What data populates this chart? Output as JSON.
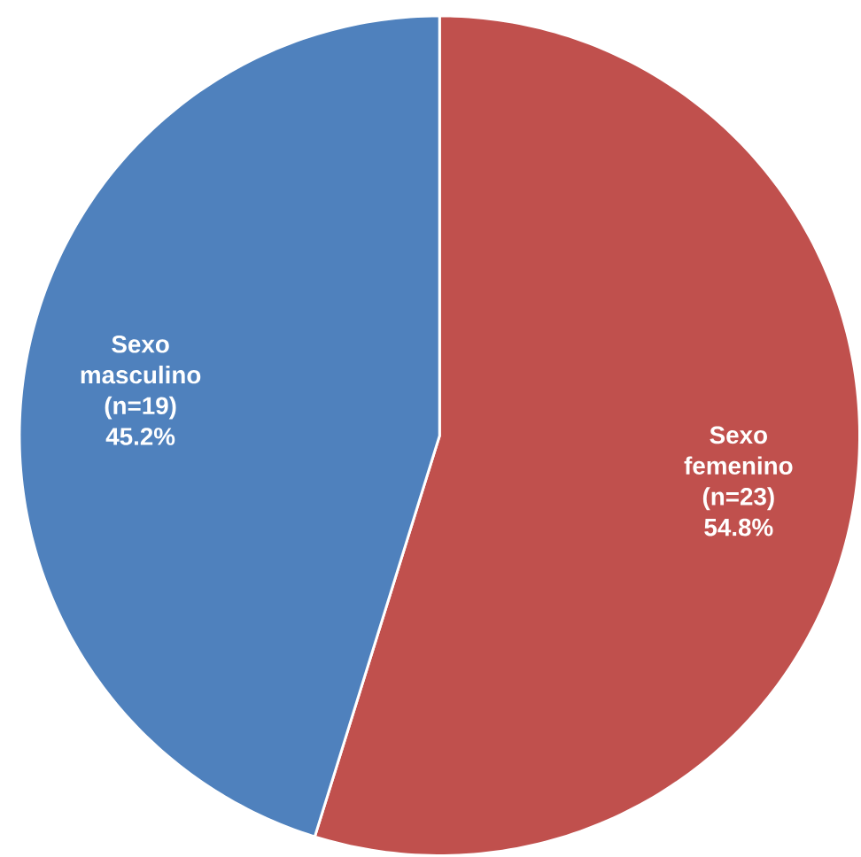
{
  "chart_data": {
    "type": "pie",
    "categories": [
      "Sexo femenino",
      "Sexo masculino"
    ],
    "values": [
      54.8,
      45.2
    ],
    "value_labels": [
      "(n=23) 54.8%",
      "(n=19) 45.2%"
    ],
    "colors": [
      "#c0504d",
      "#4f81bd"
    ]
  }
}
